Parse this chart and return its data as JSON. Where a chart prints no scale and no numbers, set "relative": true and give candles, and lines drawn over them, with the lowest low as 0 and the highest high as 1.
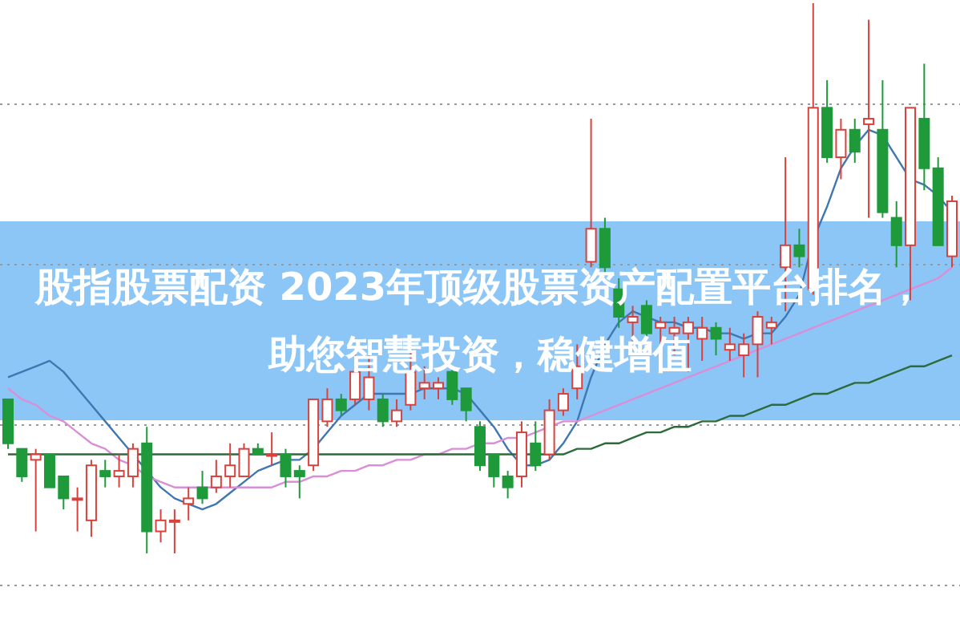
{
  "chart_data": {
    "type": "candlestick",
    "title": "股指股票配资 2023年顶级股票资产配置平台排名，助您智慧投资，稳健增值",
    "relative": true,
    "grid": "y",
    "categories": [
      null,
      null,
      null,
      null,
      null,
      null,
      null,
      null,
      null,
      null,
      null,
      null,
      null,
      null,
      null,
      null,
      null,
      null,
      null,
      null,
      null,
      null,
      null,
      null,
      null,
      null,
      null,
      null,
      null,
      null,
      null,
      null,
      null,
      null,
      null,
      null,
      null,
      null,
      null,
      null,
      null,
      null,
      null,
      null,
      null,
      null,
      null,
      null,
      null,
      null,
      null,
      null,
      null,
      null,
      null,
      null,
      null,
      null,
      null,
      null,
      null,
      null,
      null,
      null,
      null,
      null,
      null,
      null,
      null
    ],
    "ohlc": [
      [
        0.28,
        0.28,
        0.19,
        0.2
      ],
      [
        0.19,
        0.19,
        0.13,
        0.14
      ],
      [
        0.17,
        0.19,
        0.04,
        0.18
      ],
      [
        0.18,
        0.18,
        0.12,
        0.12
      ],
      [
        0.14,
        0.14,
        0.08,
        0.1
      ],
      [
        0.1,
        0.12,
        0.04,
        0.1
      ],
      [
        0.06,
        0.17,
        0.03,
        0.16
      ],
      [
        0.15,
        0.17,
        0.12,
        0.14
      ],
      [
        0.14,
        0.18,
        0.12,
        0.15
      ],
      [
        0.14,
        0.2,
        0.12,
        0.19
      ],
      [
        0.2,
        0.23,
        0,
        0.04
      ],
      [
        0.04,
        0.08,
        0.02,
        0.06
      ],
      [
        0.06,
        0.08,
        0,
        0.06
      ],
      [
        0.09,
        0.12,
        0.06,
        0.1
      ],
      [
        0.12,
        0.15,
        0.09,
        0.1
      ],
      [
        0.12,
        0.17,
        0.11,
        0.14
      ],
      [
        0.14,
        0.2,
        0.12,
        0.16
      ],
      [
        0.14,
        0.2,
        0.14,
        0.19
      ],
      [
        0.19,
        0.2,
        0.18,
        0.18
      ],
      [
        0.18,
        0.22,
        0.16,
        0.18
      ],
      [
        0.18,
        0.19,
        0.12,
        0.14
      ],
      [
        0.15,
        0.16,
        0.1,
        0.14
      ],
      [
        0.16,
        0.28,
        0.15,
        0.28
      ],
      [
        0.24,
        0.3,
        0.23,
        0.28
      ],
      [
        0.28,
        0.29,
        0.25,
        0.26
      ],
      [
        0.28,
        0.37,
        0.27,
        0.33
      ],
      [
        0.28,
        0.37,
        0.26,
        0.32
      ],
      [
        0.28,
        0.29,
        0.23,
        0.24
      ],
      [
        0.24,
        0.28,
        0.23,
        0.26
      ],
      [
        0.27,
        0.37,
        0.26,
        0.33
      ],
      [
        0.3,
        0.34,
        0.28,
        0.31
      ],
      [
        0.3,
        0.32,
        0.28,
        0.31
      ],
      [
        0.33,
        0.34,
        0.27,
        0.28
      ],
      [
        0.3,
        0.3,
        0.24,
        0.26
      ],
      [
        0.23,
        0.24,
        0.15,
        0.16
      ],
      [
        0.18,
        0.18,
        0.12,
        0.14
      ],
      [
        0.14,
        0.15,
        0.1,
        0.12
      ],
      [
        0.14,
        0.24,
        0.12,
        0.22
      ],
      [
        0.2,
        0.24,
        0.15,
        0.16
      ],
      [
        0.18,
        0.28,
        0.17,
        0.26
      ],
      [
        0.26,
        0.3,
        0.25,
        0.29
      ],
      [
        0.3,
        0.38,
        0.28,
        0.34
      ],
      [
        0.53,
        0.79,
        0.52,
        0.59
      ],
      [
        0.59,
        0.61,
        0.51,
        0.52
      ],
      [
        0.48,
        0.5,
        0.41,
        0.43
      ],
      [
        0.42,
        0.45,
        0.38,
        0.43
      ],
      [
        0.45,
        0.46,
        0.39,
        0.4
      ],
      [
        0.41,
        0.43,
        0.38,
        0.42
      ],
      [
        0.4,
        0.43,
        0.36,
        0.41
      ],
      [
        0.4,
        0.43,
        0.33,
        0.42
      ],
      [
        0.39,
        0.43,
        0.35,
        0.41
      ],
      [
        0.41,
        0.42,
        0.36,
        0.39
      ],
      [
        0.37,
        0.41,
        0.35,
        0.38
      ],
      [
        0.36,
        0.4,
        0.32,
        0.38
      ],
      [
        0.38,
        0.44,
        0.32,
        0.43
      ],
      [
        0.41,
        0.43,
        0.38,
        0.42
      ],
      [
        0.52,
        0.72,
        0.44,
        0.56
      ],
      [
        0.56,
        0.59,
        0.52,
        0.54
      ],
      [
        0.48,
        1,
        0.47,
        0.81
      ],
      [
        0.81,
        0.86,
        0.71,
        0.72
      ],
      [
        0.72,
        0.79,
        0.68,
        0.77
      ],
      [
        0.77,
        0.79,
        0.71,
        0.73
      ],
      [
        0.78,
        0.97,
        0.61,
        0.79
      ],
      [
        0.77,
        0.86,
        0.61,
        0.62
      ],
      [
        0.61,
        0.64,
        0.52,
        0.56
      ],
      [
        0.56,
        0.81,
        0.46,
        0.81
      ],
      [
        0.79,
        0.89,
        0.66,
        0.7
      ],
      [
        0.7,
        0.72,
        0.56,
        0.56
      ],
      [
        0.54,
        0.65,
        0.52,
        0.64
      ]
    ],
    "series": [
      {
        "type": "line",
        "color": "#3f77b0",
        "values": [
          0.32,
          0.33,
          0.34,
          0.35,
          0.33,
          0.3,
          0.27,
          0.24,
          0.21,
          0.18,
          0.15,
          0.12,
          0.1,
          0.09,
          0.08,
          0.09,
          0.11,
          0.13,
          0.15,
          0.16,
          0.17,
          0.17,
          0.19,
          0.22,
          0.25,
          0.27,
          0.29,
          0.29,
          0.29,
          0.29,
          0.3,
          0.3,
          0.3,
          0.29,
          0.26,
          0.23,
          0.19,
          0.16,
          0.16,
          0.17,
          0.2,
          0.24,
          0.32,
          0.38,
          0.42,
          0.44,
          0.43,
          0.42,
          0.42,
          0.41,
          0.41,
          0.4,
          0.4,
          0.39,
          0.4,
          0.4,
          0.43,
          0.47,
          0.57,
          0.63,
          0.7,
          0.74,
          0.77,
          0.76,
          0.72,
          0.68,
          0.67,
          0.65,
          0.62
        ]
      },
      {
        "type": "line",
        "color": "#d98fd8",
        "values": [
          0.3,
          0.28,
          0.27,
          0.25,
          0.24,
          0.22,
          0.2,
          0.19,
          0.17,
          0.16,
          0.14,
          0.13,
          0.12,
          0.12,
          0.12,
          0.12,
          0.12,
          0.12,
          0.12,
          0.12,
          0.13,
          0.13,
          0.14,
          0.14,
          0.15,
          0.15,
          0.16,
          0.16,
          0.17,
          0.17,
          0.18,
          0.18,
          0.19,
          0.19,
          0.2,
          0.2,
          0.21,
          0.21,
          0.22,
          0.23,
          0.24,
          0.24,
          0.25,
          0.26,
          0.27,
          0.28,
          0.29,
          0.3,
          0.31,
          0.32,
          0.33,
          0.34,
          0.35,
          0.36,
          0.37,
          0.38,
          0.39,
          0.4,
          0.41,
          0.42,
          0.43,
          0.44,
          0.45,
          0.46,
          0.47,
          0.48,
          0.49,
          0.5,
          0.52
        ]
      },
      {
        "type": "line",
        "color": "#2e6b3a",
        "values": [
          0.18,
          0.18,
          0.18,
          0.18,
          0.18,
          0.18,
          0.18,
          0.18,
          0.18,
          0.18,
          0.18,
          0.18,
          0.18,
          0.18,
          0.18,
          0.18,
          0.18,
          0.18,
          0.18,
          0.18,
          0.18,
          0.18,
          0.18,
          0.18,
          0.18,
          0.18,
          0.18,
          0.18,
          0.18,
          0.18,
          0.18,
          0.18,
          0.18,
          0.18,
          0.18,
          0.18,
          0.18,
          0.18,
          0.18,
          0.18,
          0.18,
          0.19,
          0.19,
          0.2,
          0.2,
          0.21,
          0.22,
          0.22,
          0.23,
          0.23,
          0.24,
          0.24,
          0.25,
          0.25,
          0.26,
          0.27,
          0.27,
          0.28,
          0.29,
          0.29,
          0.3,
          0.31,
          0.31,
          0.32,
          0.33,
          0.34,
          0.34,
          0.35,
          0.36
        ]
      }
    ]
  }
}
